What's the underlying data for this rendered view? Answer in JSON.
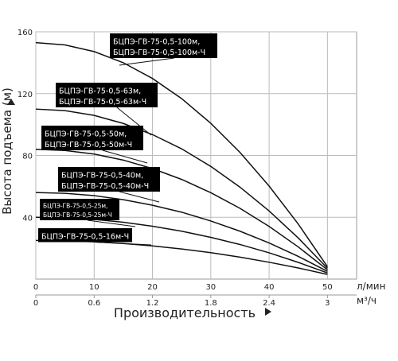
{
  "chart_data": {
    "type": "line",
    "y_label": "Высота подъема (м)",
    "x_label": "Производительность",
    "x_unit": "л/мин",
    "x2_unit": "м³/ч",
    "x": [
      0,
      5,
      10,
      15,
      20,
      25,
      30,
      35,
      40,
      45,
      50
    ],
    "xlim": [
      0,
      55
    ],
    "xticks": [
      0,
      10,
      20,
      30,
      40,
      50
    ],
    "x2lim": [
      0,
      3.3
    ],
    "x2ticks": [
      0,
      0.6,
      1.2,
      1.8,
      2.4,
      3
    ],
    "ylim": [
      0,
      160
    ],
    "yticks": [
      40,
      80,
      120,
      160
    ],
    "grid": true,
    "series": [
      {
        "labels": [
          "БЦПЭ-ГВ-75-0,5-100м,",
          "БЦПЭ-ГВ-75-0,5-100м-Ч"
        ],
        "color": "#111111",
        "values": [
          153,
          151.5,
          147.2,
          140,
          129.8,
          116.8,
          100.8,
          82,
          60.2,
          35.6,
          8
        ]
      },
      {
        "labels": [
          "БЦПЭ-ГВ-75-0,5-63м,",
          "БЦПЭ-ГВ-75-0,5-63м-Ч"
        ],
        "color": "#111111",
        "values": [
          110,
          109,
          105.9,
          100.7,
          93.5,
          84.3,
          72.9,
          59.5,
          44.1,
          26.6,
          7
        ]
      },
      {
        "labels": [
          "БЦПЭ-ГВ-75-0,5-50м,",
          "БЦПЭ-ГВ-75-0,5-50м-Ч"
        ],
        "color": "#111111",
        "values": [
          84,
          83.2,
          80.9,
          77,
          71.5,
          64.5,
          55.9,
          45.8,
          34.1,
          20.8,
          6
        ]
      },
      {
        "labels": [
          "БЦПЭ-ГВ-75-0,5-40м,",
          "БЦПЭ-ГВ-75-0,5-40м-Ч"
        ],
        "color": "#111111",
        "values": [
          56,
          55.5,
          54,
          51.4,
          47.8,
          43.3,
          37.6,
          31,
          23.4,
          14.7,
          5
        ]
      },
      {
        "labels": [
          "БЦПЭ-ГВ-75-0,5-25м,",
          "БЦПЭ-ГВ-75-0,5-25м-Ч"
        ],
        "color": "#111111",
        "values": [
          40,
          39.6,
          38.6,
          36.8,
          34.2,
          31,
          27,
          22.4,
          17,
          10.8,
          4
        ]
      },
      {
        "labels": [
          "БЦПЭ-ГВ-75-0,5-16м-Ч"
        ],
        "color": "#111111",
        "values": [
          25,
          24.8,
          24.1,
          23,
          21.5,
          19.5,
          17.1,
          14.2,
          10.9,
          7.2,
          3
        ]
      }
    ]
  }
}
